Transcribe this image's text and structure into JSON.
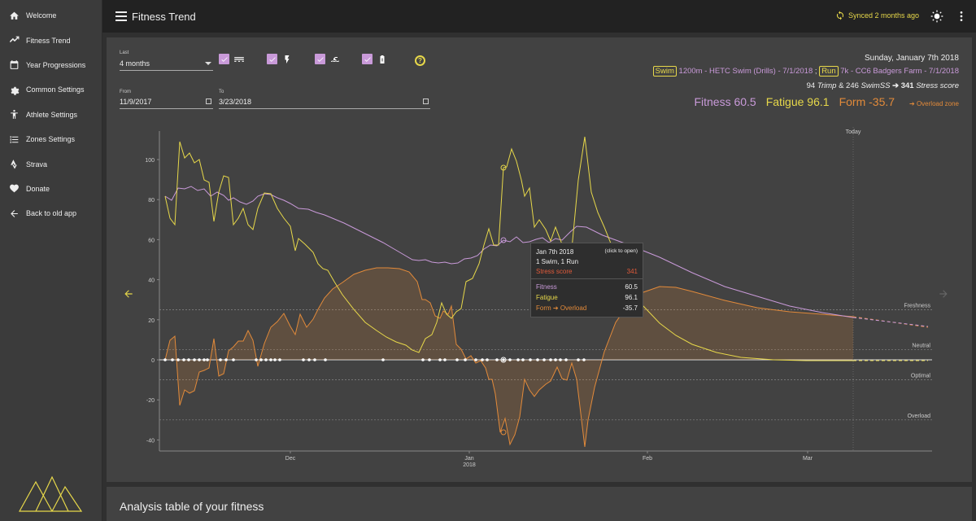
{
  "sidebar": {
    "items": [
      {
        "label": "Welcome",
        "icon": "home-icon"
      },
      {
        "label": "Fitness Trend",
        "icon": "trend-icon"
      },
      {
        "label": "Year Progressions",
        "icon": "calendar-icon"
      },
      {
        "label": "Common Settings",
        "icon": "gear-icon"
      },
      {
        "label": "Athlete Settings",
        "icon": "person-icon"
      },
      {
        "label": "Zones Settings",
        "icon": "list-icon"
      },
      {
        "label": "Strava",
        "icon": "strava-icon"
      },
      {
        "label": "Donate",
        "icon": "heart-icon"
      },
      {
        "label": "Back to old app",
        "icon": "arrow-left-icon"
      }
    ]
  },
  "header": {
    "title": "Fitness Trend",
    "sync_text": "Synced 2 months ago"
  },
  "controls": {
    "period_label": "Last",
    "period_value": "4 months",
    "from_label": "From",
    "from_value": "11/9/2017",
    "to_label": "To",
    "to_value": "3/23/2018",
    "help_symbol": "?"
  },
  "info": {
    "date": "Sunday, January 7th 2018",
    "activity1_tag": "Swim",
    "activity1_text": "1200m - HETC Swim (Drills) - 7/1/2018",
    "activity_sep": ";",
    "activity2_tag": "Run",
    "activity2_text": "7k - CC6 Badgers Farm - 7/1/2018",
    "trimp_value": "94",
    "trimp_label": "Trimp",
    "and": "&",
    "swimss_value": "246",
    "swimss_label": "SwimSS",
    "arrow": "➔",
    "stress_value": "341",
    "stress_label": "Stress score",
    "fitness": "Fitness 60.5",
    "fatigue": "Fatigue 96.1",
    "form": "Form -35.7",
    "zone": "➔ Overload zone"
  },
  "tooltip": {
    "date": "Jan 7th 2018",
    "click_hint": "(click to open)",
    "activities": "1 Swim, 1 Run",
    "stress_label": "Stress score",
    "stress_value": "341",
    "fitness_label": "Fitness",
    "fitness_value": "60.5",
    "fatigue_label": "Fatigue",
    "fatigue_value": "96.1",
    "form_label": "Form ➔ Overload",
    "form_value": "-35.7"
  },
  "chart": {
    "today_label": "Today",
    "y_ticks": [
      "100",
      "80",
      "60",
      "40",
      "20",
      "0",
      "-20",
      "-40"
    ],
    "y_values": [
      100,
      80,
      60,
      40,
      20,
      0,
      -20,
      -40
    ],
    "x_ticks": [
      {
        "label": "Dec",
        "sub": ""
      },
      {
        "label": "Jan",
        "sub": "2018"
      },
      {
        "label": "Feb",
        "sub": ""
      },
      {
        "label": "Mar",
        "sub": ""
      }
    ],
    "zone_labels": [
      "Freshness",
      "Neutral",
      "Optimal",
      "Overload"
    ],
    "zone_values": [
      25,
      5,
      -10,
      -30
    ],
    "colors": {
      "fitness": "#c99ad9",
      "fatigue": "#e7d84a",
      "form": "#e28a3a",
      "stress": "#e05a3a"
    }
  },
  "analysis": {
    "title": "Analysis table of your fitness"
  }
}
